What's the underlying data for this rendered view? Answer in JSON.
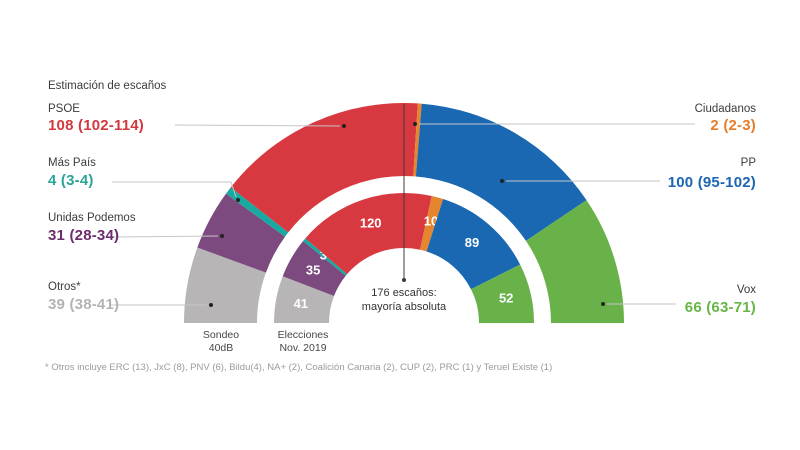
{
  "annotations": {
    "title": "Estimación de escaños",
    "left": [
      {
        "name": "PSOE",
        "value": "108 (102-114)",
        "color": "#d3383f"
      },
      {
        "name": "Más País",
        "value": "4 (3-4)",
        "color": "#2aa398"
      },
      {
        "name": "Unidas Podemos",
        "value": "31 (28-34)",
        "color": "#6e2c6c"
      },
      {
        "name": "Otros*",
        "value": "39 (38-41)",
        "color": "#b4b2b4"
      }
    ],
    "right": [
      {
        "name": "Ciudadanos",
        "value": "2 (2-3)",
        "color": "#e87d2b"
      },
      {
        "name": "PP",
        "value": "100 (95-102)",
        "color": "#1c65b1"
      },
      {
        "name": "Vox",
        "value": "66 (63-71)",
        "color": "#67b545"
      }
    ]
  },
  "chart_data": {
    "type": "hemicycle",
    "total_seats": 350,
    "parties": [
      {
        "id": "otros",
        "name": "Otros*",
        "color": "#b7b5b6",
        "sondeo": 39,
        "elecciones": 41
      },
      {
        "id": "unidas-podemos",
        "name": "Unidas Podemos",
        "color": "#7d4a80",
        "sondeo": 31,
        "elecciones": 35
      },
      {
        "id": "mas-pais",
        "name": "Más País",
        "color": "#16aaa0",
        "sondeo": 4,
        "elecciones": 3
      },
      {
        "id": "psoe",
        "name": "PSOE",
        "color": "#d83940",
        "sondeo": 108,
        "elecciones": 120
      },
      {
        "id": "ciudadanos",
        "name": "Ciudadanos",
        "color": "#e5862f",
        "sondeo": 2,
        "elecciones": 10
      },
      {
        "id": "pp",
        "name": "PP",
        "color": "#1a68b2",
        "sondeo": 100,
        "elecciones": 89
      },
      {
        "id": "vox",
        "name": "Vox",
        "color": "#68b249",
        "sondeo": 66,
        "elecciones": 52
      }
    ],
    "rings": [
      {
        "id": "sondeo",
        "label1": "Sondeo",
        "label2": "40dB"
      },
      {
        "id": "elecciones",
        "label1": "Elecciones",
        "label2": "Nov. 2019"
      }
    ],
    "majority": {
      "seats": 176,
      "line1": "176 escaños:",
      "line2": "mayoría absoluta"
    }
  },
  "footnote": "* Otros incluye ERC (13), JxC (8), PNV (6), Bildu(4), NA+ (2), Coalición Canaria (2), CUP (2), PRC (1) y Teruel Existe (1)"
}
